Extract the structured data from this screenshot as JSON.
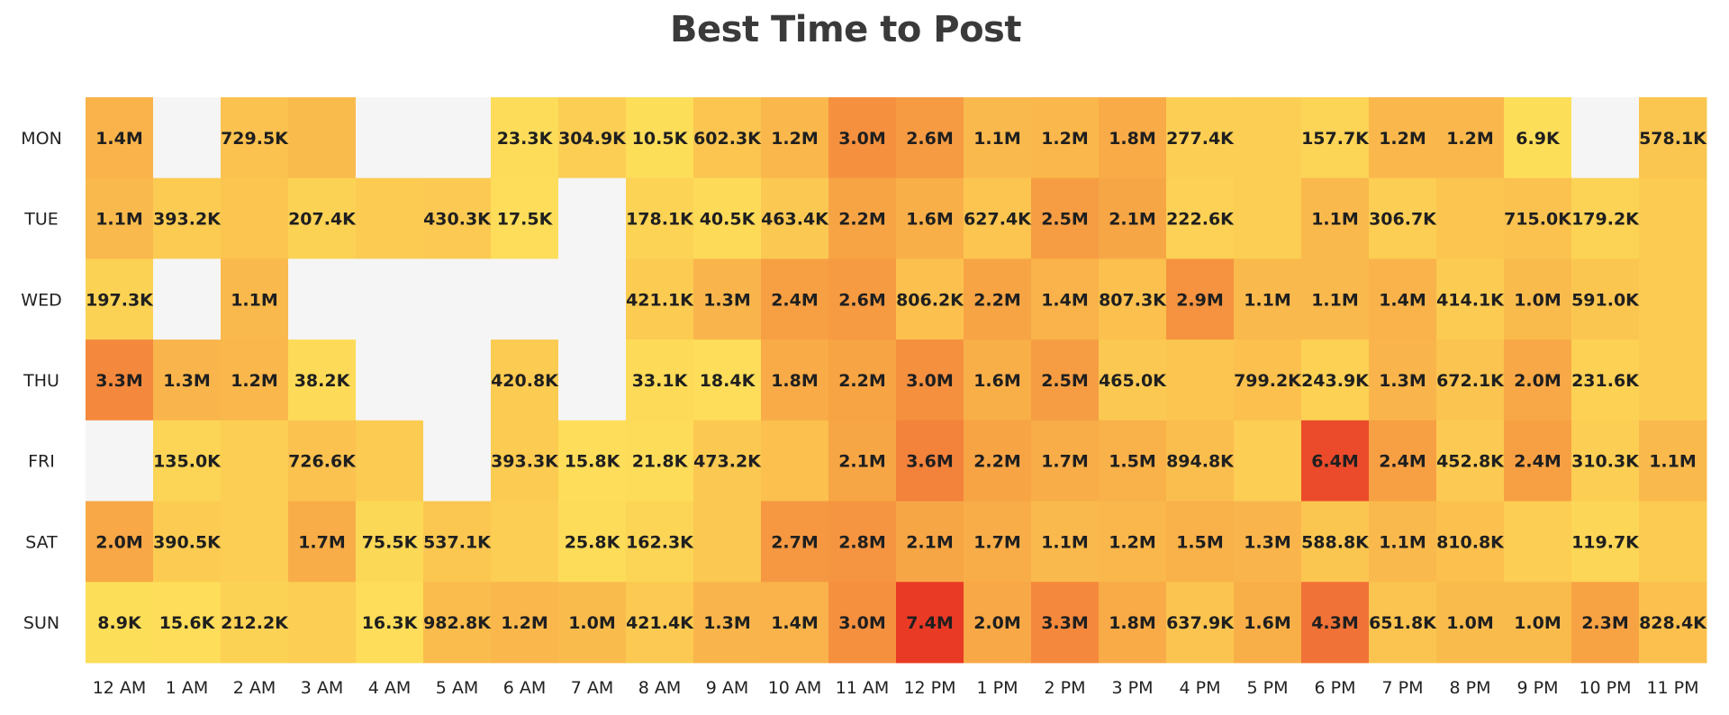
{
  "chart_data": {
    "type": "heatmap",
    "title": "Best Time to Post",
    "x_categories": [
      "12 AM",
      "1 AM",
      "2 AM",
      "3 AM",
      "4 AM",
      "5 AM",
      "6 AM",
      "7 AM",
      "8 AM",
      "9 AM",
      "10 AM",
      "11 AM",
      "12 PM",
      "1 PM",
      "2 PM",
      "3 PM",
      "4 PM",
      "5 PM",
      "6 PM",
      "7 PM",
      "8 PM",
      "9 PM",
      "10 PM",
      "11 PM"
    ],
    "y_categories": [
      "MON",
      "TUE",
      "WED",
      "THU",
      "FRI",
      "SAT",
      "SUN"
    ],
    "missing_color": "#f5f5f5",
    "color_scale": [
      "#fde05a",
      "#fbc24f",
      "#f7a244",
      "#f06c35",
      "#e93a25"
    ],
    "values": [
      [
        1400000,
        null,
        729500,
        1000000,
        null,
        null,
        23300,
        304900,
        10500,
        602300,
        1200000,
        3000000,
        2600000,
        1100000,
        1200000,
        1800000,
        277400,
        300000,
        157700,
        1200000,
        1200000,
        6900,
        null,
        578100
      ],
      [
        1100000,
        393200,
        600000,
        207400,
        400000,
        430300,
        17500,
        null,
        178100,
        40500,
        463400,
        2200000,
        1600000,
        627400,
        2500000,
        2100000,
        222600,
        300000,
        1100000,
        306700,
        600000,
        715000,
        179200,
        400000
      ],
      [
        197300,
        null,
        1100000,
        null,
        null,
        null,
        null,
        null,
        421100,
        1300000,
        2400000,
        2600000,
        806200,
        2200000,
        1400000,
        807300,
        2900000,
        1100000,
        1100000,
        1400000,
        414100,
        1000000,
        591000,
        400000
      ],
      [
        3300000,
        1300000,
        1200000,
        38200,
        null,
        null,
        420800,
        null,
        33100,
        18400,
        1800000,
        2200000,
        3000000,
        1600000,
        2500000,
        465000,
        600000,
        799200,
        243900,
        1300000,
        672100,
        2000000,
        231600,
        400000
      ],
      [
        null,
        135000,
        300000,
        726600,
        400000,
        null,
        393300,
        15800,
        21800,
        473200,
        800000,
        2100000,
        3600000,
        2200000,
        1700000,
        1500000,
        894800,
        300000,
        6400000,
        2400000,
        452800,
        2400000,
        310300,
        1100000
      ],
      [
        2000000,
        390500,
        300000,
        1700000,
        75500,
        537100,
        300000,
        25800,
        162300,
        500000,
        2700000,
        2800000,
        2100000,
        1700000,
        1100000,
        1200000,
        1500000,
        1300000,
        588800,
        1100000,
        810800,
        300000,
        119700,
        400000
      ],
      [
        8900,
        15600,
        212200,
        300000,
        16300,
        982800,
        1200000,
        1000000,
        421400,
        1300000,
        1400000,
        3000000,
        7400000,
        2000000,
        3300000,
        1800000,
        637900,
        1600000,
        4300000,
        651800,
        1000000,
        1000000,
        2300000,
        828400
      ]
    ],
    "labels": [
      [
        "1.4M",
        "",
        "729.5K",
        "",
        "",
        "",
        "23.3K",
        "304.9K",
        "10.5K",
        "602.3K",
        "1.2M",
        "3.0M",
        "2.6M",
        "1.1M",
        "1.2M",
        "1.8M",
        "277.4K",
        "",
        "157.7K",
        "1.2M",
        "1.2M",
        "6.9K",
        "",
        "578.1K"
      ],
      [
        "1.1M",
        "393.2K",
        "",
        "207.4K",
        "",
        "430.3K",
        "17.5K",
        "",
        "178.1K",
        "40.5K",
        "463.4K",
        "2.2M",
        "1.6M",
        "627.4K",
        "2.5M",
        "2.1M",
        "222.6K",
        "",
        "1.1M",
        "306.7K",
        "",
        "715.0K",
        "179.2K",
        ""
      ],
      [
        "197.3K",
        "",
        "1.1M",
        "",
        "",
        "",
        "",
        "",
        "421.1K",
        "1.3M",
        "2.4M",
        "2.6M",
        "806.2K",
        "2.2M",
        "1.4M",
        "807.3K",
        "2.9M",
        "1.1M",
        "1.1M",
        "1.4M",
        "414.1K",
        "1.0M",
        "591.0K",
        ""
      ],
      [
        "3.3M",
        "1.3M",
        "1.2M",
        "38.2K",
        "",
        "",
        "420.8K",
        "",
        "33.1K",
        "18.4K",
        "1.8M",
        "2.2M",
        "3.0M",
        "1.6M",
        "2.5M",
        "465.0K",
        "",
        "799.2K",
        "243.9K",
        "1.3M",
        "672.1K",
        "2.0M",
        "231.6K",
        ""
      ],
      [
        "",
        "135.0K",
        "",
        "726.6K",
        "",
        "",
        "393.3K",
        "15.8K",
        "21.8K",
        "473.2K",
        "",
        "2.1M",
        "3.6M",
        "2.2M",
        "1.7M",
        "1.5M",
        "894.8K",
        "",
        "6.4M",
        "2.4M",
        "452.8K",
        "2.4M",
        "310.3K",
        "1.1M"
      ],
      [
        "2.0M",
        "390.5K",
        "",
        "1.7M",
        "75.5K",
        "537.1K",
        "",
        "25.8K",
        "162.3K",
        "",
        "2.7M",
        "2.8M",
        "2.1M",
        "1.7M",
        "1.1M",
        "1.2M",
        "1.5M",
        "1.3M",
        "588.8K",
        "1.1M",
        "810.8K",
        "",
        "119.7K",
        ""
      ],
      [
        "8.9K",
        "15.6K",
        "212.2K",
        "",
        "16.3K",
        "982.8K",
        "1.2M",
        "1.0M",
        "421.4K",
        "1.3M",
        "1.4M",
        "3.0M",
        "7.4M",
        "2.0M",
        "3.3M",
        "1.8M",
        "637.9K",
        "1.6M",
        "4.3M",
        "651.8K",
        "1.0M",
        "1.0M",
        "2.3M",
        "828.4K"
      ]
    ]
  }
}
